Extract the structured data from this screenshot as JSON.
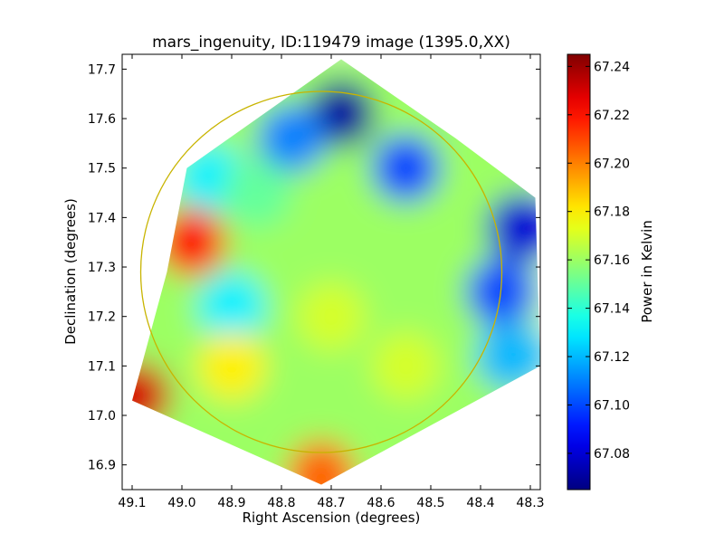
{
  "chart_data": {
    "type": "heatmap",
    "title": "mars_ingenuity, ID:119479 image (1395.0,XX)",
    "xlabel": "Right Ascension (degrees)",
    "ylabel": "Declination (degrees)",
    "xlim": [
      49.12,
      48.28
    ],
    "ylim": [
      16.85,
      17.73
    ],
    "x_ticks": [
      49.1,
      49.0,
      48.9,
      48.8,
      48.7,
      48.6,
      48.5,
      48.4,
      48.3
    ],
    "x_tick_labels": [
      "49.1",
      "49.0",
      "48.9",
      "48.8",
      "48.7",
      "48.6",
      "48.5",
      "48.4",
      "48.3"
    ],
    "y_ticks": [
      16.9,
      17.0,
      17.1,
      17.2,
      17.3,
      17.4,
      17.5,
      17.6,
      17.7
    ],
    "y_tick_labels": [
      "16.9",
      "17.0",
      "17.1",
      "17.2",
      "17.3",
      "17.4",
      "17.5",
      "17.6",
      "17.7"
    ],
    "colorbar": {
      "label": "Power in Kelvin",
      "colormap": "jet",
      "range": [
        67.065,
        67.245
      ],
      "ticks": [
        67.08,
        67.1,
        67.12,
        67.14,
        67.16,
        67.18,
        67.2,
        67.22,
        67.24
      ],
      "tick_labels": [
        "67.08",
        "67.10",
        "67.12",
        "67.14",
        "67.16",
        "67.18",
        "67.20",
        "67.22",
        "67.24"
      ]
    },
    "footprint_polygon": [
      [
        48.68,
        17.72
      ],
      [
        48.45,
        17.56
      ],
      [
        48.29,
        17.44
      ],
      [
        48.28,
        17.1
      ],
      [
        48.72,
        16.86
      ],
      [
        49.1,
        17.03
      ],
      [
        49.03,
        17.29
      ],
      [
        48.99,
        17.5
      ]
    ],
    "features": [
      {
        "x": 48.68,
        "y": 17.61,
        "value": 67.07
      },
      {
        "x": 48.32,
        "y": 17.38,
        "value": 67.08
      },
      {
        "x": 48.55,
        "y": 17.5,
        "value": 67.1
      },
      {
        "x": 48.78,
        "y": 17.56,
        "value": 67.11
      },
      {
        "x": 48.36,
        "y": 17.25,
        "value": 67.1
      },
      {
        "x": 48.34,
        "y": 17.12,
        "value": 67.12
      },
      {
        "x": 48.94,
        "y": 17.48,
        "value": 67.13
      },
      {
        "x": 48.9,
        "y": 17.22,
        "value": 67.13
      },
      {
        "x": 48.98,
        "y": 17.35,
        "value": 67.22
      },
      {
        "x": 49.09,
        "y": 17.04,
        "value": 67.23
      },
      {
        "x": 48.85,
        "y": 17.45,
        "value": 67.15
      },
      {
        "x": 48.62,
        "y": 17.35,
        "value": 67.16
      },
      {
        "x": 48.9,
        "y": 17.1,
        "value": 67.18
      },
      {
        "x": 48.72,
        "y": 16.88,
        "value": 67.205
      },
      {
        "x": 48.55,
        "y": 17.1,
        "value": 67.17
      },
      {
        "x": 48.7,
        "y": 17.2,
        "value": 67.17
      }
    ],
    "background_value": 67.16,
    "circle": {
      "center": [
        48.72,
        17.29
      ],
      "radius_deg": 0.365,
      "color": "#c8b400"
    },
    "grid": false
  }
}
